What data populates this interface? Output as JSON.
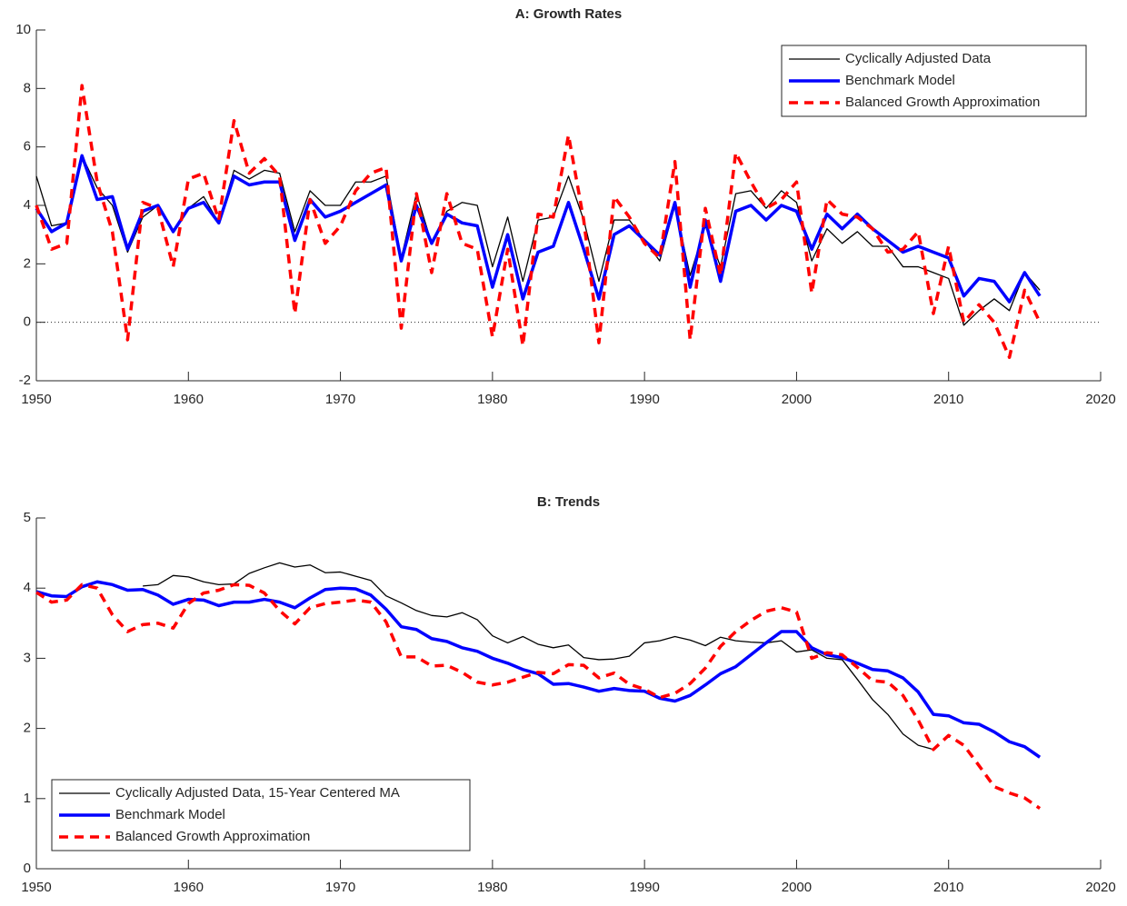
{
  "chart_data": [
    {
      "type": "line",
      "title": "A: Growth Rates",
      "x": [
        1950,
        1951,
        1952,
        1953,
        1954,
        1955,
        1956,
        1957,
        1958,
        1959,
        1960,
        1961,
        1962,
        1963,
        1964,
        1965,
        1966,
        1967,
        1968,
        1969,
        1970,
        1971,
        1972,
        1973,
        1974,
        1975,
        1976,
        1977,
        1978,
        1979,
        1980,
        1981,
        1982,
        1983,
        1984,
        1985,
        1986,
        1987,
        1988,
        1989,
        1990,
        1991,
        1992,
        1993,
        1994,
        1995,
        1996,
        1997,
        1998,
        1999,
        2000,
        2001,
        2002,
        2003,
        2004,
        2005,
        2006,
        2007,
        2008,
        2009,
        2010,
        2011,
        2012,
        2013,
        2014,
        2015,
        2016
      ],
      "series": [
        {
          "name": "Cyclically Adjusted Data",
          "color": "#000000",
          "style": "thin",
          "values": [
            5.0,
            3.3,
            3.4,
            5.7,
            4.6,
            4.0,
            2.4,
            3.6,
            4.0,
            3.1,
            3.9,
            4.3,
            3.4,
            5.2,
            4.9,
            5.2,
            5.1,
            3.1,
            4.5,
            4.0,
            4.0,
            4.8,
            4.8,
            5.0,
            2.2,
            4.4,
            2.7,
            3.8,
            4.1,
            4.0,
            1.9,
            3.6,
            1.4,
            3.5,
            3.6,
            5.0,
            3.5,
            1.4,
            3.5,
            3.5,
            2.8,
            2.1,
            4.0,
            1.6,
            3.3,
            1.9,
            4.4,
            4.5,
            3.9,
            4.5,
            4.1,
            2.1,
            3.2,
            2.7,
            3.1,
            2.6,
            2.6,
            1.9,
            1.9,
            1.7,
            1.5,
            -0.1,
            0.4,
            0.8,
            0.4,
            1.7,
            1.1
          ]
        },
        {
          "name": "Benchmark Model",
          "color": "#0000ff",
          "style": "thick",
          "values": [
            3.9,
            3.1,
            3.4,
            5.7,
            4.2,
            4.3,
            2.5,
            3.8,
            4.0,
            3.1,
            3.9,
            4.1,
            3.4,
            5.0,
            4.7,
            4.8,
            4.8,
            2.8,
            4.2,
            3.6,
            3.8,
            4.1,
            4.4,
            4.7,
            2.1,
            4.0,
            2.7,
            3.7,
            3.4,
            3.3,
            1.2,
            3.0,
            0.8,
            2.4,
            2.6,
            4.1,
            2.5,
            0.8,
            3.0,
            3.3,
            2.8,
            2.3,
            4.1,
            1.2,
            3.5,
            1.4,
            3.8,
            4.0,
            3.5,
            4.0,
            3.8,
            2.5,
            3.7,
            3.2,
            3.7,
            3.2,
            2.8,
            2.4,
            2.6,
            2.4,
            2.2,
            0.9,
            1.5,
            1.4,
            0.7,
            1.7,
            0.9
          ]
        },
        {
          "name": "Balanced Growth Approximation",
          "color": "#ff0000",
          "style": "dashed",
          "values": [
            4.0,
            2.5,
            2.7,
            8.1,
            4.8,
            3.1,
            -0.6,
            4.1,
            3.9,
            1.9,
            4.9,
            5.1,
            3.5,
            6.9,
            5.1,
            5.6,
            5.0,
            0.3,
            4.2,
            2.7,
            3.3,
            4.5,
            5.1,
            5.3,
            -0.2,
            4.4,
            1.7,
            4.4,
            2.7,
            2.5,
            -0.5,
            2.5,
            -0.8,
            3.7,
            3.6,
            6.4,
            3.5,
            -0.7,
            4.3,
            3.6,
            2.7,
            2.2,
            5.5,
            -0.6,
            3.9,
            1.6,
            5.8,
            4.8,
            3.9,
            4.2,
            4.8,
            1.0,
            4.2,
            3.7,
            3.6,
            3.2,
            2.4,
            2.5,
            3.1,
            0.3,
            2.6,
            0.0,
            0.6,
            0.0,
            -1.2,
            1.1,
            0.0
          ]
        }
      ],
      "xlim": [
        1950,
        2020
      ],
      "xticks": [
        1950,
        1960,
        1970,
        1980,
        1990,
        2000,
        2010,
        2020
      ],
      "ylim": [
        -2,
        10
      ],
      "yticks": [
        -2,
        0,
        2,
        4,
        6,
        8,
        10
      ],
      "reference_line": 0,
      "legend": "top-right"
    },
    {
      "type": "line",
      "title": "B: Trends",
      "x": [
        1950,
        1951,
        1952,
        1953,
        1954,
        1955,
        1956,
        1957,
        1958,
        1959,
        1960,
        1961,
        1962,
        1963,
        1964,
        1965,
        1966,
        1967,
        1968,
        1969,
        1970,
        1971,
        1972,
        1973,
        1974,
        1975,
        1976,
        1977,
        1978,
        1979,
        1980,
        1981,
        1982,
        1983,
        1984,
        1985,
        1986,
        1987,
        1988,
        1989,
        1990,
        1991,
        1992,
        1993,
        1994,
        1995,
        1996,
        1997,
        1998,
        1999,
        2000,
        2001,
        2002,
        2003,
        2004,
        2005,
        2006,
        2007,
        2008,
        2009,
        2010,
        2011,
        2012,
        2013,
        2014,
        2015,
        2016
      ],
      "series": [
        {
          "name": "Cyclically Adjusted Data, 15-Year Centered MA",
          "color": "#000000",
          "style": "thin",
          "values": [
            null,
            null,
            null,
            null,
            null,
            null,
            null,
            4.03,
            4.05,
            4.18,
            4.16,
            4.09,
            4.05,
            4.06,
            4.21,
            4.29,
            4.36,
            4.3,
            4.33,
            4.22,
            4.23,
            4.17,
            4.11,
            3.89,
            3.79,
            3.68,
            3.61,
            3.59,
            3.65,
            3.55,
            3.32,
            3.22,
            3.31,
            3.2,
            3.15,
            3.19,
            3.01,
            2.98,
            2.99,
            3.03,
            3.22,
            3.25,
            3.31,
            3.26,
            3.18,
            3.3,
            3.25,
            3.23,
            3.22,
            3.25,
            3.09,
            3.12,
            3.0,
            2.98,
            2.7,
            2.41,
            2.2,
            1.92,
            1.76,
            1.7,
            null,
            null,
            null,
            null,
            null,
            null,
            null
          ]
        },
        {
          "name": "Benchmark Model",
          "color": "#0000ff",
          "style": "thick",
          "values": [
            3.95,
            3.89,
            3.88,
            4.02,
            4.09,
            4.05,
            3.97,
            3.98,
            3.9,
            3.77,
            3.84,
            3.83,
            3.75,
            3.8,
            3.8,
            3.84,
            3.8,
            3.72,
            3.86,
            3.98,
            4.0,
            3.99,
            3.9,
            3.7,
            3.45,
            3.41,
            3.28,
            3.24,
            3.15,
            3.1,
            3.0,
            2.93,
            2.84,
            2.78,
            2.63,
            2.64,
            2.59,
            2.53,
            2.57,
            2.54,
            2.53,
            2.43,
            2.39,
            2.47,
            2.62,
            2.78,
            2.88,
            3.05,
            3.22,
            3.38,
            3.38,
            3.15,
            3.05,
            3.01,
            2.93,
            2.84,
            2.82,
            2.72,
            2.52,
            2.2,
            2.18,
            2.08,
            2.06,
            1.95,
            1.81,
            1.74,
            1.59
          ]
        },
        {
          "name": "Balanced Growth Approximation",
          "color": "#ff0000",
          "style": "dashed",
          "values": [
            3.94,
            3.8,
            3.83,
            4.05,
            4.0,
            3.62,
            3.38,
            3.48,
            3.5,
            3.43,
            3.78,
            3.93,
            3.97,
            4.05,
            4.04,
            3.93,
            3.68,
            3.49,
            3.72,
            3.78,
            3.8,
            3.83,
            3.8,
            3.52,
            3.02,
            3.02,
            2.89,
            2.9,
            2.8,
            2.66,
            2.62,
            2.66,
            2.73,
            2.8,
            2.78,
            2.91,
            2.9,
            2.72,
            2.79,
            2.63,
            2.56,
            2.44,
            2.5,
            2.64,
            2.86,
            3.17,
            3.38,
            3.54,
            3.67,
            3.72,
            3.66,
            3.0,
            3.08,
            3.05,
            2.87,
            2.68,
            2.66,
            2.47,
            2.12,
            1.7,
            1.9,
            1.76,
            1.47,
            1.17,
            1.08,
            1.01,
            0.86
          ]
        }
      ],
      "xlim": [
        1950,
        2020
      ],
      "xticks": [
        1950,
        1960,
        1970,
        1980,
        1990,
        2000,
        2010,
        2020
      ],
      "ylim": [
        0,
        5
      ],
      "yticks": [
        0,
        1,
        2,
        3,
        4,
        5
      ],
      "legend": "bottom-left"
    }
  ]
}
